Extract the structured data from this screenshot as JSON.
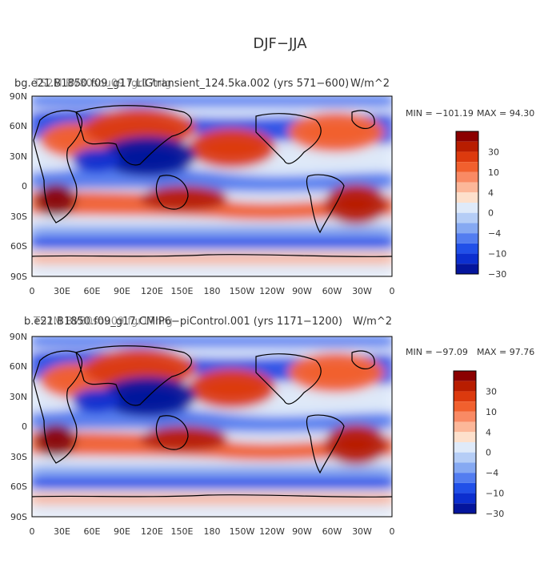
{
  "figure": {
    "title": "DJF−JJA"
  },
  "chart_data": [
    {
      "type": "heatmap",
      "title_left": "bg.e21.B1850.f09_g17.LIGtransient_124.5ka.002 (yrs 571−600)",
      "title_overlay": "TS2M BV80sou09 fgr17nlg",
      "units": "W/m^2",
      "min_label": "MIN = −101.19",
      "max_label": "MAX =  94.30",
      "min": -101.19,
      "max": 94.3,
      "lat_ticks": [
        "90N",
        "60N",
        "30N",
        "0",
        "30S",
        "60S",
        "90S"
      ],
      "lon_ticks": [
        "0",
        "30E",
        "60E",
        "90E",
        "120E",
        "150E",
        "180",
        "150W",
        "120W",
        "90W",
        "60W",
        "30W",
        "0"
      ],
      "colorbar_labels": [
        "30",
        "10",
        "4",
        "0",
        "−4",
        "−10",
        "−30"
      ]
    },
    {
      "type": "heatmap",
      "title_left": "b.e21.B1850.f09_g17.CMIP6−piControl.001 (yrs 1171−1200)",
      "title_overlay": "TS2M BV80sou09 fgr17nrg",
      "units": "W/m^2",
      "min_label": "MIN = −97.09",
      "max_label": "MAX =  97.76",
      "min": -97.09,
      "max": 97.76,
      "lat_ticks": [
        "90N",
        "60N",
        "30N",
        "0",
        "30S",
        "60S",
        "90S"
      ],
      "lon_ticks": [
        "0",
        "30E",
        "60E",
        "90E",
        "120E",
        "150E",
        "180",
        "150W",
        "120W",
        "90W",
        "60W",
        "30W",
        "0"
      ],
      "colorbar_labels": [
        "30",
        "10",
        "4",
        "0",
        "−4",
        "−10",
        "−30"
      ]
    }
  ],
  "colors": {
    "levels": [
      "#8b0000",
      "#b81d00",
      "#dc3a0e",
      "#f1602e",
      "#f98a64",
      "#fcb799",
      "#fde0cc",
      "#dfeaf9",
      "#b5cdf6",
      "#86a9f2",
      "#537df0",
      "#2150e8",
      "#0c2fcf",
      "#04159c"
    ]
  }
}
